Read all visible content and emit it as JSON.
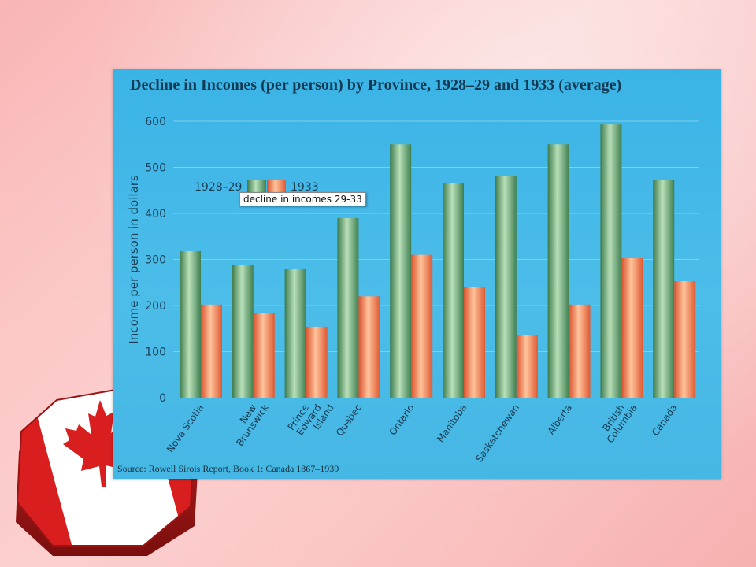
{
  "colors": {
    "panel_bg": "#3ab3e6",
    "series_1928": "#5fa06e",
    "series_1933": "#f07850",
    "grid": "#7fd0ef"
  },
  "tooltip": "decline in incomes 29-33",
  "chart_data": {
    "type": "bar",
    "title": "Decline in Incomes (per person) by Province, 1928–29 and 1933 (average)",
    "ylabel": "Income per person in dollars",
    "xlabel": "",
    "ylim": [
      0,
      600
    ],
    "yticks": [
      0,
      100,
      200,
      300,
      400,
      500,
      600
    ],
    "grid": true,
    "legend_position": "top-left",
    "categories": [
      [
        "Nova Scotia"
      ],
      [
        "New",
        "Brunswick"
      ],
      [
        "Prince",
        "Edward",
        "Island"
      ],
      [
        "Quebec"
      ],
      [
        "Ontario"
      ],
      [
        "Manitoba"
      ],
      [
        "Saskatchewan"
      ],
      [
        "Alberta"
      ],
      [
        "British",
        "Columbia"
      ],
      [
        "Canada"
      ]
    ],
    "series": [
      {
        "name": "1928–29",
        "color": "#5fa06e",
        "values": [
          318,
          288,
          280,
          390,
          550,
          465,
          482,
          550,
          593,
          473
        ]
      },
      {
        "name": "1933",
        "color": "#f07850",
        "values": [
          202,
          183,
          154,
          220,
          310,
          240,
          135,
          202,
          303,
          253
        ]
      }
    ],
    "source": "Source: Rowell Sirois Report, Book 1: Canada 1867–1939"
  }
}
